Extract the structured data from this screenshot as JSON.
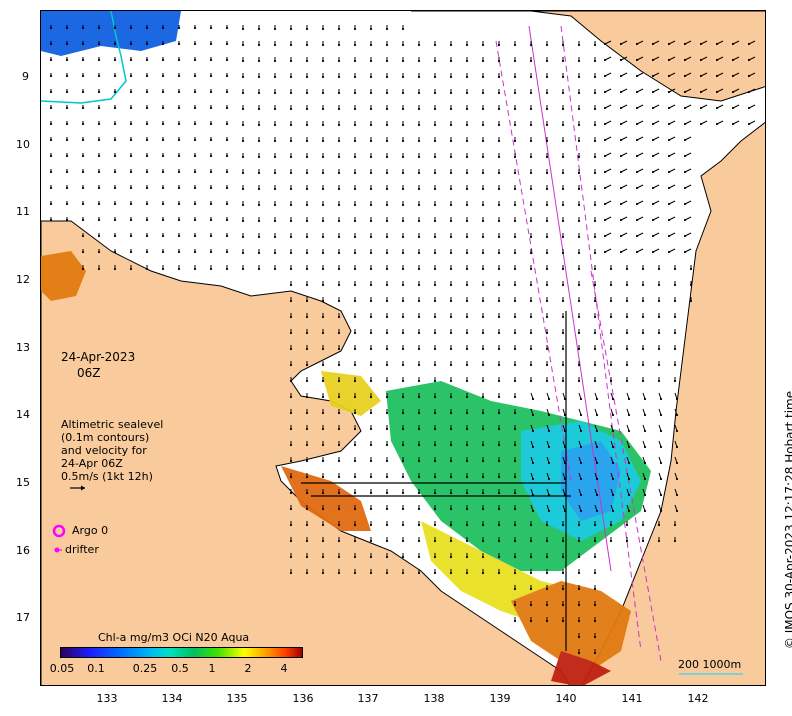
{
  "map": {
    "lat_ticks": [
      "9",
      "10",
      "11",
      "12",
      "13",
      "14",
      "15",
      "16",
      "17"
    ],
    "lon_ticks": [
      "133",
      "134",
      "135",
      "136",
      "137",
      "138",
      "139",
      "140",
      "141",
      "142"
    ],
    "date": "24-Apr-2023",
    "time": "06Z",
    "legend_lines": [
      "Altimetric sealevel",
      "(0.1m contours)",
      "and velocity for",
      "24-Apr 06Z",
      "0.5m/s (1kt 12h)"
    ],
    "argo_label": "Argo 0",
    "drifter_label": "drifter",
    "colorbar_title": "Chl-a mg/m3 OCi N20 Aqua",
    "colorbar_ticks": [
      "0.05",
      "0.1",
      "0.25",
      "0.5",
      "1",
      "2",
      "4"
    ],
    "scale_label": "200  1000m",
    "credit": "© IMOS 30-Apr-2023 12:17:28 Hobart time",
    "colors": {
      "land": "#f9cb9c",
      "ocean": "#ffffff",
      "argo": "#ff00ff",
      "track": "#cc33cc",
      "contour": "#00c8c8"
    },
    "icons": [
      "argo-float-circle-icon",
      "drifter-dot-icon",
      "velocity-arrow-icon"
    ]
  }
}
